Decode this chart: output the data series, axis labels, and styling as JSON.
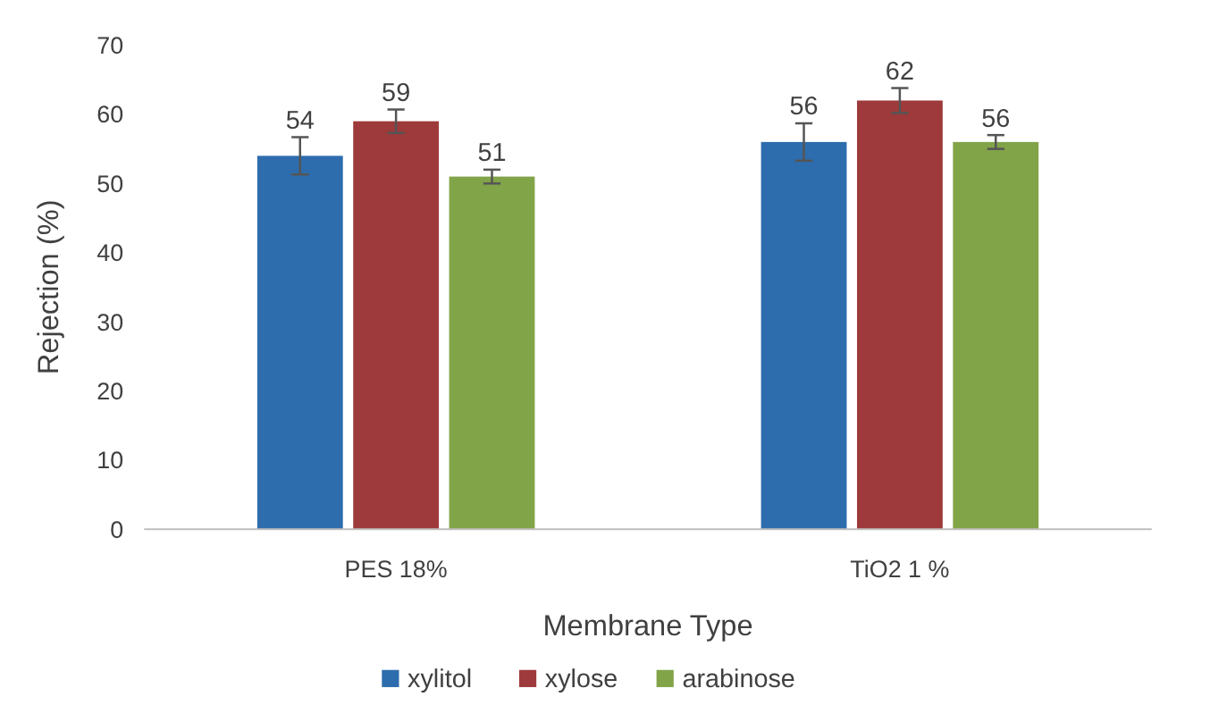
{
  "chart_data": {
    "type": "bar",
    "xlabel": "Membrane Type",
    "ylabel": "Rejection (%)",
    "categories": [
      "PES 18%",
      "TiO2 1 %"
    ],
    "series": [
      {
        "name": "xylitol",
        "color": "#2e6dad",
        "values": [
          54,
          56
        ],
        "errors": [
          2.7,
          2.7
        ]
      },
      {
        "name": "xylose",
        "color": "#9e3a3b",
        "values": [
          59,
          62
        ],
        "errors": [
          1.7,
          1.8
        ]
      },
      {
        "name": "arabinose",
        "color": "#82a449",
        "values": [
          51,
          56
        ],
        "errors": [
          1,
          1
        ]
      }
    ],
    "ylim": [
      0,
      70
    ],
    "yticks": [
      0,
      10,
      20,
      30,
      40,
      50,
      60,
      70
    ],
    "grid": false,
    "data_labels": true,
    "legend": "bottom"
  }
}
